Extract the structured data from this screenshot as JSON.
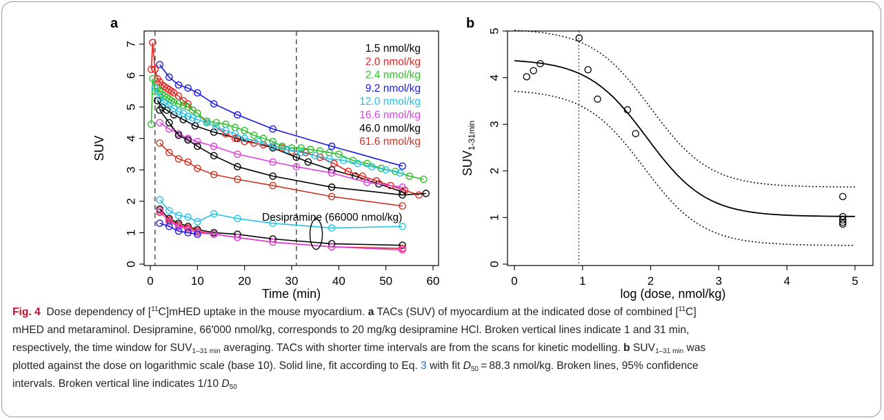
{
  "chart_data": [
    {
      "panel": "a",
      "type": "line",
      "xlabel": "Time (min)",
      "ylabel": "SUV",
      "xlim": [
        0,
        60
      ],
      "ylim": [
        0,
        7
      ],
      "xticks": [
        0,
        10,
        20,
        30,
        40,
        50,
        60
      ],
      "yticks": [
        0,
        1,
        2,
        3,
        4,
        5,
        6,
        7
      ],
      "vlines": [
        1,
        31
      ],
      "grid": false,
      "legend_position": "top-right",
      "annotation": "Desipramine (66000 nmol/kg)",
      "series": [
        {
          "name": "1.5 nmol/kg",
          "color": "#000000",
          "x": [
            1.5,
            2.5,
            3.5,
            5,
            7,
            9.5,
            13.5,
            18.5,
            26,
            31,
            33.5,
            38.5,
            43.5,
            48.5,
            53.5
          ],
          "y": [
            5.2,
            5.0,
            4.9,
            4.75,
            4.6,
            4.4,
            4.2,
            4.0,
            3.7,
            3.4,
            3.25,
            3.0,
            2.8,
            2.55,
            2.3
          ]
        },
        {
          "name": "2.0 nmol/kg",
          "color": "#e8211e",
          "x": [
            0.2,
            0.5,
            1,
            1.5,
            2,
            2.5,
            3,
            3.5,
            4,
            4.5,
            5,
            6,
            7,
            8,
            9,
            10,
            12,
            14,
            16,
            18,
            20,
            22,
            24,
            26,
            28,
            30,
            33,
            36,
            39,
            42,
            45,
            48,
            51,
            54,
            57
          ],
          "y": [
            6.2,
            7.05,
            6.2,
            5.9,
            5.8,
            5.7,
            5.65,
            5.6,
            5.55,
            5.5,
            5.45,
            5.35,
            5.2,
            5.1,
            4.9,
            4.8,
            4.5,
            4.35,
            4.15,
            4.0,
            3.9,
            3.85,
            3.8,
            3.75,
            3.7,
            3.6,
            3.55,
            3.4,
            3.2,
            2.95,
            2.8,
            2.65,
            2.5,
            2.35,
            2.2
          ]
        },
        {
          "name": "2.4 nmol/kg",
          "color": "#2fc02b",
          "x": [
            0.2,
            0.5,
            1,
            1.5,
            2,
            2.5,
            3,
            3.5,
            4,
            4.5,
            5,
            6,
            7,
            8,
            9,
            10,
            12,
            14,
            16,
            18,
            20,
            22,
            24,
            26,
            28,
            30,
            32,
            34,
            36,
            38,
            40,
            43,
            46,
            49,
            52,
            55,
            58
          ],
          "y": [
            4.45,
            5.9,
            5.5,
            5.6,
            5.5,
            5.4,
            5.35,
            5.3,
            5.25,
            5.2,
            5.15,
            5.1,
            5.05,
            5.0,
            4.9,
            4.8,
            4.55,
            4.5,
            4.45,
            4.35,
            4.25,
            4.1,
            4.0,
            3.9,
            3.75,
            3.7,
            3.7,
            3.65,
            3.6,
            3.55,
            3.5,
            3.3,
            3.2,
            3.05,
            2.95,
            2.8,
            2.7
          ]
        },
        {
          "name": "9.2 nmol/kg",
          "color": "#1a1ae8",
          "x": [
            2,
            4,
            6,
            8,
            10,
            13.5,
            18.5,
            26,
            38.5,
            53.5
          ],
          "y": [
            6.35,
            5.95,
            5.7,
            5.6,
            5.45,
            5.1,
            4.75,
            4.3,
            3.75,
            3.12
          ]
        },
        {
          "name": "12.0 nmol/kg",
          "color": "#27c4e8",
          "x": [
            1,
            2,
            3,
            4,
            5,
            6,
            7,
            8,
            9,
            10,
            12,
            14,
            16,
            18,
            20,
            23,
            26,
            29,
            32,
            35,
            38,
            41,
            44,
            47,
            50,
            53
          ],
          "y": [
            5.6,
            5.3,
            5.15,
            5.05,
            4.95,
            4.85,
            4.8,
            4.7,
            4.65,
            4.6,
            4.5,
            4.35,
            4.25,
            4.15,
            4.0,
            3.9,
            3.75,
            3.65,
            3.55,
            3.45,
            3.35,
            3.3,
            3.2,
            3.1,
            3.0,
            2.9
          ]
        },
        {
          "name": "16.6 nmol/kg",
          "color": "#e040e0",
          "x": [
            2,
            4,
            6,
            8,
            10,
            13.5,
            18.5,
            26,
            31,
            38.5,
            46,
            53.5
          ],
          "y": [
            4.5,
            4.3,
            4.15,
            4.0,
            3.9,
            3.75,
            3.5,
            3.25,
            3.1,
            2.9,
            2.6,
            2.45
          ]
        },
        {
          "name": "46.0 nmol/kg",
          "color": "#000000",
          "x": [
            2,
            4,
            6,
            8,
            10,
            13.5,
            18.5,
            26,
            38.5,
            53.5,
            58.5
          ],
          "y": [
            4.9,
            4.5,
            4.1,
            3.95,
            3.75,
            3.45,
            3.1,
            2.8,
            2.45,
            2.2,
            2.25
          ]
        },
        {
          "name": "61.6 nmol/kg",
          "color": "#cc3322",
          "x": [
            2,
            4,
            6,
            8,
            10,
            13.5,
            18.5,
            26,
            38.5,
            53.5
          ],
          "y": [
            3.85,
            3.55,
            3.35,
            3.25,
            3.05,
            2.85,
            2.7,
            2.5,
            2.15,
            1.85
          ]
        },
        {
          "name": "",
          "color": "#27c4e8",
          "x": [
            2,
            4,
            6,
            8,
            10,
            13.5,
            18.5,
            26,
            38.5,
            53.5
          ],
          "y": [
            2.05,
            1.7,
            1.55,
            1.5,
            1.35,
            1.6,
            1.45,
            1.3,
            1.15,
            1.2
          ]
        },
        {
          "name": "",
          "color": "#000000",
          "x": [
            2,
            4,
            6,
            8,
            10,
            13.5,
            18.5,
            26,
            38.5,
            53.5
          ],
          "y": [
            1.75,
            1.45,
            1.3,
            1.2,
            1.1,
            1.0,
            0.95,
            0.8,
            0.65,
            0.6
          ]
        },
        {
          "name": "",
          "color": "#e8211e",
          "x": [
            2,
            4,
            6,
            8,
            10,
            13.5,
            18.5,
            26,
            38.5,
            53.5
          ],
          "y": [
            1.65,
            1.4,
            1.25,
            1.15,
            1.05,
            0.95,
            0.85,
            0.7,
            0.55,
            0.5
          ]
        },
        {
          "name": "",
          "color": "#e040e0",
          "x": [
            2,
            4,
            6,
            8,
            10,
            13.5,
            18.5,
            26,
            38.5,
            53.5
          ],
          "y": [
            1.7,
            1.35,
            1.2,
            1.1,
            1.0,
            0.95,
            0.85,
            0.7,
            0.55,
            0.45
          ]
        },
        {
          "name": "",
          "color": "#1a1ae8",
          "x": [
            2,
            4,
            6,
            8,
            10
          ],
          "y": [
            1.3,
            1.2,
            1.05,
            1.0,
            0.95
          ]
        }
      ]
    },
    {
      "panel": "b",
      "type": "scatter",
      "xlabel": "log (dose, nmol/kg)",
      "ylabel": "SUV",
      "ylabel_sub": "1-31min",
      "xlim": [
        0,
        5
      ],
      "ylim": [
        0,
        5
      ],
      "xticks": [
        0,
        1,
        2,
        3,
        4,
        5
      ],
      "yticks": [
        0,
        1,
        2,
        3,
        4,
        5
      ],
      "vlines": [
        0.946
      ],
      "grid": false,
      "points": {
        "x": [
          0.18,
          0.28,
          0.38,
          0.95,
          1.08,
          1.22,
          1.66,
          1.78,
          4.82,
          4.82,
          4.82,
          4.82,
          4.82
        ],
        "y": [
          4.02,
          4.15,
          4.3,
          4.85,
          4.17,
          3.54,
          3.31,
          2.8,
          1.45,
          1.02,
          0.95,
          0.9,
          0.86
        ]
      },
      "fit": {
        "top": 4.4,
        "bottom": 1.02,
        "log_d50": 1.946
      },
      "ci_upper": {
        "top": 5.05,
        "bottom": 1.65,
        "log_d50": 2.0
      },
      "ci_lower": {
        "top": 3.75,
        "bottom": 0.4,
        "log_d50": 1.9
      }
    }
  ],
  "panel_labels": {
    "a": "a",
    "b": "b"
  },
  "caption": {
    "fig_label": "Fig. 4",
    "t1": "Dose dependency of [",
    "sup11a": "11",
    "t2": "C]mHED uptake in the mouse myocardium.",
    "bold_a": "a",
    "t3": "TACs (SUV) of myocardium at the indicated dose of combined [",
    "sup11b": "11",
    "t4": "C]",
    "line2": "mHED and metaraminol. Desipramine, 66′000 nmol/kg, corresponds to 20 mg/kg desipramine HCl. Broken vertical lines indicate 1 and 31 min,",
    "line3a": "respectively, the time window for SUV",
    "line3sub": "1–31 min",
    "line3b": " averaging. TACs with shorter time intervals are from the scans for kinetic modelling.",
    "bold_b": "b",
    "line3c": " SUV",
    "line3csub": "1–31 min",
    "line3d": " was",
    "line4a": "plotted against the dose on logarithmic scale (base 10). Solid line, fit according to Eq. ",
    "eq_ref": "3",
    "line4b": " with fit ",
    "d50_d": "D",
    "d50_sub": "50",
    "line4c": " = 88.3 nmol/kg. Broken lines, 95% confidence",
    "line5a": "intervals. Broken vertical line indicates 1/10 ",
    "line5d": "D",
    "line5sub": "50"
  }
}
